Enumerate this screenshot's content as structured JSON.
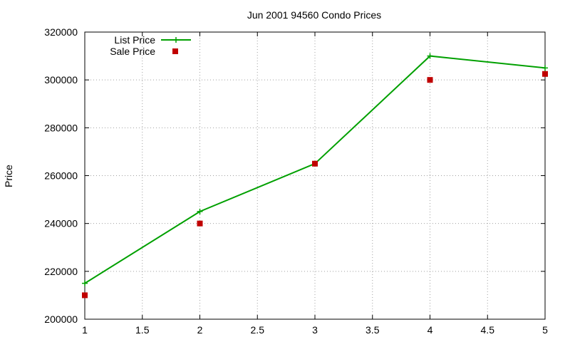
{
  "chart_data": {
    "type": "line",
    "title": "Jun 2001 94560 Condo Prices",
    "xlabel": "",
    "ylabel": "Price",
    "x": [
      1,
      2,
      3,
      4,
      5
    ],
    "xlim": [
      1,
      5
    ],
    "ylim": [
      200000,
      320000
    ],
    "x_ticks": [
      "1",
      "1.5",
      "2",
      "2.5",
      "3",
      "3.5",
      "4",
      "4.5",
      "5"
    ],
    "y_ticks": [
      "200000",
      "220000",
      "240000",
      "260000",
      "280000",
      "300000",
      "320000"
    ],
    "grid": true,
    "legend_position": "top-left",
    "series": [
      {
        "name": "List Price",
        "style": "line+cross",
        "color": "#00a000",
        "values": [
          215000,
          245000,
          265000,
          310000,
          305000
        ]
      },
      {
        "name": "Sale Price",
        "style": "square",
        "color": "#c00000",
        "values": [
          210000,
          240000,
          265000,
          300000,
          302500
        ]
      }
    ]
  }
}
